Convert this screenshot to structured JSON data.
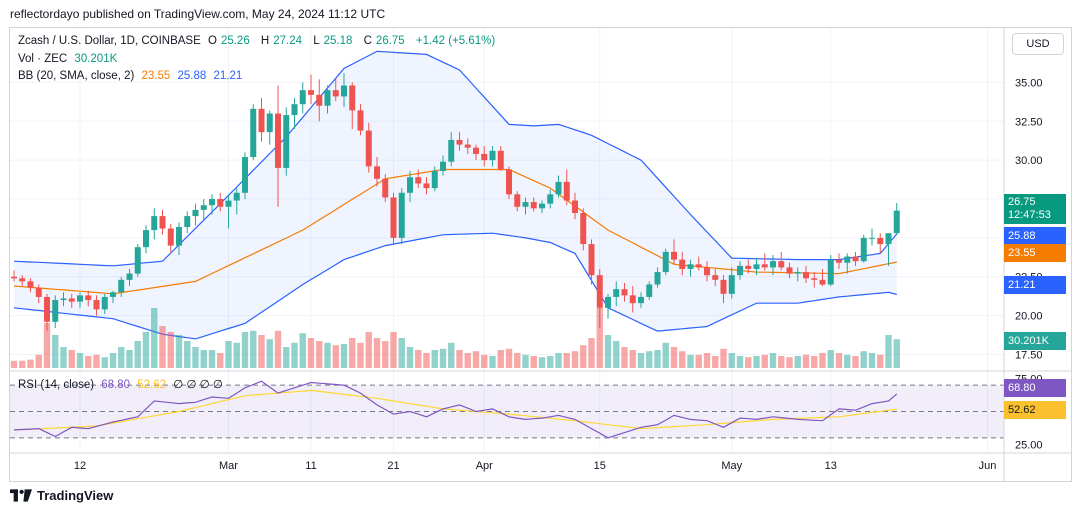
{
  "publisher": "reflectordayo published on TradingView.com, May 24, 2024 11:12 UTC",
  "legend": {
    "title": "Zcash / U.S. Dollar, 1D, COINBASE",
    "o_label": "O",
    "o": "25.26",
    "h_label": "H",
    "h": "27.24",
    "l_label": "L",
    "l": "25.18",
    "c_label": "C",
    "c": "26.75",
    "change": "+1.42 (+5.61%)",
    "vol_label": "Vol · ZEC",
    "vol": "30.201K",
    "bb_label": "BB (20, SMA, close, 2)",
    "bb_basis": "23.55",
    "bb_upper": "25.88",
    "bb_lower": "21.21",
    "rsi_label": "RSI (14, close)",
    "rsi": "68.80",
    "rsi_ma": "52.62",
    "rsi_extra": "∅ ∅ ∅ ∅"
  },
  "currency": "USD",
  "price_tags": {
    "last": "26.75",
    "countdown": "12:47:53",
    "upper": "25.88",
    "basis": "23.55",
    "lower": "21.21",
    "volume": "30.201K",
    "rsi": "68.80",
    "rsi_ma": "52.62"
  },
  "footer_brand": "TradingView",
  "colors": {
    "up": "#26a69a",
    "down": "#ef5350",
    "bb_basis": "#f57c00",
    "bb_band": "#2962ff",
    "rsi": "#7e57c2",
    "rsi_ma": "#fdd835"
  },
  "chart_data": {
    "type": "candlestick",
    "title": "Zcash / U.S. Dollar, 1D, COINBASE",
    "price_axis": {
      "ticks": [
        "35.00",
        "32.50",
        "30.00",
        "27.50",
        "25.00",
        "22.50",
        "20.00",
        "17.50"
      ],
      "range": [
        16.5,
        38.5
      ]
    },
    "rsi_axis": {
      "ticks": [
        "75.00",
        "50.00",
        "25.00"
      ],
      "levels": [
        70,
        50,
        30
      ],
      "range": [
        20,
        80
      ]
    },
    "x_axis": {
      "start": "2024-02-04",
      "ticks": [
        {
          "label": "12",
          "date": "2024-02-12"
        },
        {
          "label": "Mar",
          "date": "2024-03-01"
        },
        {
          "label": "11",
          "date": "2024-03-11"
        },
        {
          "label": "21",
          "date": "2024-03-21"
        },
        {
          "label": "Apr",
          "date": "2024-04-01"
        },
        {
          "label": "15",
          "date": "2024-04-15"
        },
        {
          "label": "May",
          "date": "2024-05-01"
        },
        {
          "label": "13",
          "date": "2024-05-13"
        },
        {
          "label": "Jun",
          "date": "2024-06-01"
        }
      ]
    },
    "candles": [
      [
        22.5,
        22.9,
        22.2,
        22.4
      ],
      [
        22.4,
        22.6,
        21.9,
        22.2
      ],
      [
        22.2,
        22.4,
        21.5,
        21.8
      ],
      [
        21.8,
        22.0,
        20.8,
        21.2
      ],
      [
        21.2,
        21.4,
        19.0,
        19.6
      ],
      [
        19.6,
        21.3,
        19.2,
        21.0
      ],
      [
        21.0,
        21.5,
        20.6,
        21.1
      ],
      [
        21.1,
        21.4,
        20.5,
        20.9
      ],
      [
        20.9,
        21.5,
        20.5,
        21.3
      ],
      [
        21.3,
        21.6,
        20.6,
        21.0
      ],
      [
        21.0,
        21.3,
        20.0,
        20.4
      ],
      [
        20.4,
        21.4,
        20.1,
        21.2
      ],
      [
        21.2,
        21.6,
        20.8,
        21.5
      ],
      [
        21.5,
        22.5,
        21.2,
        22.3
      ],
      [
        22.3,
        23.0,
        21.9,
        22.7
      ],
      [
        22.7,
        24.6,
        22.5,
        24.4
      ],
      [
        24.4,
        25.8,
        24.0,
        25.5
      ],
      [
        25.5,
        26.9,
        24.9,
        26.4
      ],
      [
        26.4,
        26.8,
        25.2,
        25.6
      ],
      [
        25.6,
        25.9,
        24.0,
        24.5
      ],
      [
        24.5,
        26.0,
        23.9,
        25.7
      ],
      [
        25.7,
        26.7,
        25.3,
        26.4
      ],
      [
        26.4,
        27.2,
        25.8,
        26.8
      ],
      [
        26.8,
        27.5,
        26.2,
        27.1
      ],
      [
        27.1,
        27.8,
        26.5,
        27.5
      ],
      [
        27.5,
        27.9,
        26.7,
        27.0
      ],
      [
        27.0,
        27.8,
        25.6,
        27.4
      ],
      [
        27.4,
        28.2,
        26.5,
        27.9
      ],
      [
        27.9,
        30.5,
        27.5,
        30.2
      ],
      [
        30.2,
        33.6,
        30.0,
        33.3
      ],
      [
        33.3,
        34.0,
        31.2,
        31.8
      ],
      [
        31.8,
        33.2,
        31.0,
        33.0
      ],
      [
        33.0,
        34.8,
        27.0,
        29.5
      ],
      [
        29.5,
        33.4,
        29.0,
        32.9
      ],
      [
        32.9,
        34.0,
        32.0,
        33.6
      ],
      [
        33.6,
        35.0,
        33.0,
        34.5
      ],
      [
        34.5,
        35.5,
        33.6,
        34.2
      ],
      [
        34.2,
        35.2,
        32.5,
        33.5
      ],
      [
        33.5,
        34.8,
        33.0,
        34.5
      ],
      [
        34.5,
        35.3,
        33.8,
        34.1
      ],
      [
        34.1,
        35.6,
        33.4,
        34.8
      ],
      [
        34.8,
        35.0,
        32.0,
        33.2
      ],
      [
        33.2,
        33.6,
        31.6,
        31.9
      ],
      [
        31.9,
        32.4,
        29.2,
        29.6
      ],
      [
        29.6,
        30.2,
        28.3,
        28.8
      ],
      [
        28.8,
        29.1,
        27.3,
        27.6
      ],
      [
        27.6,
        27.9,
        24.6,
        25.0
      ],
      [
        25.0,
        28.2,
        24.6,
        27.9
      ],
      [
        27.9,
        29.3,
        27.3,
        28.9
      ],
      [
        28.9,
        29.4,
        28.2,
        28.5
      ],
      [
        28.5,
        28.9,
        27.8,
        28.2
      ],
      [
        28.2,
        29.6,
        28.0,
        29.3
      ],
      [
        29.3,
        30.3,
        29.0,
        29.9
      ],
      [
        29.9,
        31.8,
        29.6,
        31.3
      ],
      [
        31.3,
        31.8,
        30.6,
        31.0
      ],
      [
        31.0,
        31.4,
        30.4,
        30.8
      ],
      [
        30.8,
        31.0,
        30.0,
        30.4
      ],
      [
        30.4,
        30.9,
        29.6,
        30.0
      ],
      [
        30.0,
        30.9,
        29.6,
        30.6
      ],
      [
        30.6,
        30.9,
        29.3,
        29.4
      ],
      [
        29.4,
        29.6,
        27.5,
        27.8
      ],
      [
        27.8,
        28.0,
        26.7,
        27.0
      ],
      [
        27.0,
        27.6,
        26.5,
        27.3
      ],
      [
        27.3,
        27.6,
        26.7,
        26.9
      ],
      [
        26.9,
        27.4,
        26.6,
        27.2
      ],
      [
        27.2,
        28.1,
        26.9,
        27.8
      ],
      [
        27.8,
        29.0,
        27.6,
        28.6
      ],
      [
        28.6,
        29.4,
        27.1,
        27.4
      ],
      [
        27.4,
        27.9,
        26.2,
        26.6
      ],
      [
        26.6,
        26.9,
        24.2,
        24.6
      ],
      [
        24.6,
        24.9,
        22.0,
        22.6
      ],
      [
        22.6,
        23.0,
        19.2,
        20.5
      ],
      [
        20.5,
        21.4,
        19.8,
        21.2
      ],
      [
        21.2,
        22.2,
        20.6,
        21.7
      ],
      [
        21.7,
        22.1,
        20.9,
        21.3
      ],
      [
        21.3,
        21.9,
        20.2,
        20.8
      ],
      [
        20.8,
        21.5,
        20.5,
        21.2
      ],
      [
        21.2,
        22.2,
        21.0,
        22.0
      ],
      [
        22.0,
        23.1,
        21.8,
        22.8
      ],
      [
        22.8,
        24.3,
        22.6,
        24.1
      ],
      [
        24.1,
        24.9,
        23.3,
        23.6
      ],
      [
        23.6,
        24.1,
        22.6,
        23.0
      ],
      [
        23.0,
        23.6,
        22.5,
        23.3
      ],
      [
        23.3,
        23.8,
        22.9,
        23.1
      ],
      [
        23.1,
        23.5,
        22.2,
        22.6
      ],
      [
        22.6,
        23.0,
        21.9,
        22.3
      ],
      [
        22.3,
        22.6,
        20.8,
        21.4
      ],
      [
        21.4,
        23.1,
        21.1,
        22.6
      ],
      [
        22.6,
        23.5,
        22.3,
        23.2
      ],
      [
        23.2,
        23.6,
        22.7,
        23.0
      ],
      [
        23.0,
        23.7,
        22.6,
        23.3
      ],
      [
        23.3,
        24.0,
        22.9,
        23.1
      ],
      [
        23.1,
        23.9,
        22.6,
        23.5
      ],
      [
        23.5,
        24.1,
        22.9,
        23.1
      ],
      [
        23.1,
        23.4,
        22.4,
        22.7
      ],
      [
        22.7,
        23.1,
        22.2,
        22.8
      ],
      [
        22.8,
        23.2,
        22.1,
        22.4
      ],
      [
        22.4,
        22.8,
        21.8,
        22.3
      ],
      [
        22.3,
        23.0,
        21.9,
        22.0
      ],
      [
        22.0,
        23.9,
        21.9,
        23.6
      ],
      [
        23.6,
        24.0,
        23.0,
        23.4
      ],
      [
        23.4,
        24.0,
        22.7,
        23.8
      ],
      [
        23.8,
        24.1,
        23.2,
        23.5
      ],
      [
        23.5,
        25.2,
        23.4,
        25.0
      ],
      [
        25.0,
        25.6,
        24.5,
        25.0
      ],
      [
        25.0,
        25.3,
        24.0,
        24.6
      ],
      [
        24.6,
        25.2,
        23.2,
        25.3
      ],
      [
        25.3,
        27.24,
        25.18,
        26.75
      ]
    ],
    "volume_relative": [
      0.12,
      0.12,
      0.14,
      0.22,
      0.75,
      0.55,
      0.35,
      0.3,
      0.25,
      0.2,
      0.22,
      0.18,
      0.25,
      0.35,
      0.3,
      0.45,
      0.6,
      1.0,
      0.7,
      0.6,
      0.55,
      0.45,
      0.35,
      0.3,
      0.3,
      0.25,
      0.45,
      0.42,
      0.6,
      0.62,
      0.55,
      0.48,
      0.62,
      0.35,
      0.42,
      0.58,
      0.5,
      0.45,
      0.42,
      0.38,
      0.4,
      0.5,
      0.42,
      0.6,
      0.5,
      0.45,
      0.6,
      0.5,
      0.35,
      0.3,
      0.25,
      0.3,
      0.32,
      0.42,
      0.3,
      0.25,
      0.28,
      0.22,
      0.2,
      0.3,
      0.32,
      0.25,
      0.22,
      0.2,
      0.18,
      0.2,
      0.25,
      0.25,
      0.28,
      0.38,
      0.5,
      1.0,
      0.55,
      0.45,
      0.35,
      0.3,
      0.25,
      0.28,
      0.3,
      0.42,
      0.35,
      0.28,
      0.22,
      0.22,
      0.25,
      0.2,
      0.32,
      0.25,
      0.2,
      0.18,
      0.2,
      0.22,
      0.25,
      0.2,
      0.18,
      0.2,
      0.22,
      0.2,
      0.25,
      0.3,
      0.25,
      0.22,
      0.2,
      0.28,
      0.25,
      0.22,
      0.55,
      0.48
    ],
    "bb": {
      "basis_points": [
        [
          0,
          21.9
        ],
        [
          12,
          21.4
        ],
        [
          22,
          22.2
        ],
        [
          35,
          25.5
        ],
        [
          45,
          28.8
        ],
        [
          52,
          29.4
        ],
        [
          60,
          29.4
        ],
        [
          65,
          28.2
        ],
        [
          72,
          25.5
        ],
        [
          80,
          23.3
        ],
        [
          90,
          22.8
        ],
        [
          100,
          22.7
        ],
        [
          108,
          23.55
        ]
      ],
      "upper_points": [
        [
          0,
          23.5
        ],
        [
          12,
          23.2
        ],
        [
          18,
          23.5
        ],
        [
          25,
          27.2
        ],
        [
          33,
          31.5
        ],
        [
          40,
          35.9
        ],
        [
          44,
          37.0
        ],
        [
          50,
          36.8
        ],
        [
          54,
          35.8
        ],
        [
          60,
          32.3
        ],
        [
          63,
          32.2
        ],
        [
          66,
          32.3
        ],
        [
          70,
          31.6
        ],
        [
          76,
          30.0
        ],
        [
          82,
          26.5
        ],
        [
          87,
          23.7
        ],
        [
          95,
          23.6
        ],
        [
          100,
          23.6
        ],
        [
          105,
          24.0
        ],
        [
          108,
          25.88
        ]
      ],
      "lower_points": [
        [
          0,
          20.5
        ],
        [
          12,
          19.8
        ],
        [
          18,
          18.8
        ],
        [
          22,
          18.5
        ],
        [
          28,
          19.5
        ],
        [
          35,
          22.0
        ],
        [
          40,
          23.6
        ],
        [
          45,
          24.5
        ],
        [
          52,
          25.2
        ],
        [
          58,
          25.3
        ],
        [
          62,
          25.0
        ],
        [
          65,
          24.7
        ],
        [
          68,
          24.0
        ],
        [
          72,
          20.5
        ],
        [
          78,
          19.0
        ],
        [
          84,
          19.3
        ],
        [
          90,
          20.8
        ],
        [
          95,
          20.8
        ],
        [
          100,
          21.2
        ],
        [
          106,
          21.5
        ],
        [
          108,
          21.21
        ]
      ]
    },
    "rsi_points": [
      [
        0,
        36
      ],
      [
        3,
        37
      ],
      [
        5,
        31
      ],
      [
        7,
        38
      ],
      [
        9,
        37
      ],
      [
        12,
        42
      ],
      [
        15,
        46
      ],
      [
        17,
        58
      ],
      [
        20,
        56
      ],
      [
        22,
        57
      ],
      [
        24,
        61
      ],
      [
        26,
        60
      ],
      [
        28,
        68
      ],
      [
        30,
        73
      ],
      [
        32,
        64
      ],
      [
        34,
        68
      ],
      [
        36,
        72
      ],
      [
        38,
        71
      ],
      [
        40,
        70
      ],
      [
        42,
        64
      ],
      [
        44,
        55
      ],
      [
        46,
        48
      ],
      [
        48,
        50
      ],
      [
        50,
        46
      ],
      [
        52,
        52
      ],
      [
        54,
        55
      ],
      [
        56,
        50
      ],
      [
        58,
        52
      ],
      [
        60,
        46
      ],
      [
        62,
        44
      ],
      [
        64,
        45
      ],
      [
        66,
        47
      ],
      [
        68,
        44
      ],
      [
        70,
        37
      ],
      [
        72,
        30
      ],
      [
        74,
        34
      ],
      [
        76,
        38
      ],
      [
        78,
        40
      ],
      [
        80,
        47
      ],
      [
        82,
        44
      ],
      [
        84,
        43
      ],
      [
        86,
        38
      ],
      [
        88,
        45
      ],
      [
        90,
        44
      ],
      [
        92,
        46
      ],
      [
        95,
        44
      ],
      [
        98,
        43
      ],
      [
        100,
        52
      ],
      [
        102,
        51
      ],
      [
        104,
        56
      ],
      [
        106,
        58
      ],
      [
        108,
        68.8
      ]
    ],
    "rsi_ma_points": [
      [
        0,
        36
      ],
      [
        10,
        39
      ],
      [
        20,
        50
      ],
      [
        28,
        62
      ],
      [
        36,
        66
      ],
      [
        44,
        60
      ],
      [
        52,
        52
      ],
      [
        60,
        48
      ],
      [
        68,
        43
      ],
      [
        76,
        37
      ],
      [
        84,
        40
      ],
      [
        92,
        44
      ],
      [
        100,
        46
      ],
      [
        108,
        52.62
      ]
    ]
  }
}
